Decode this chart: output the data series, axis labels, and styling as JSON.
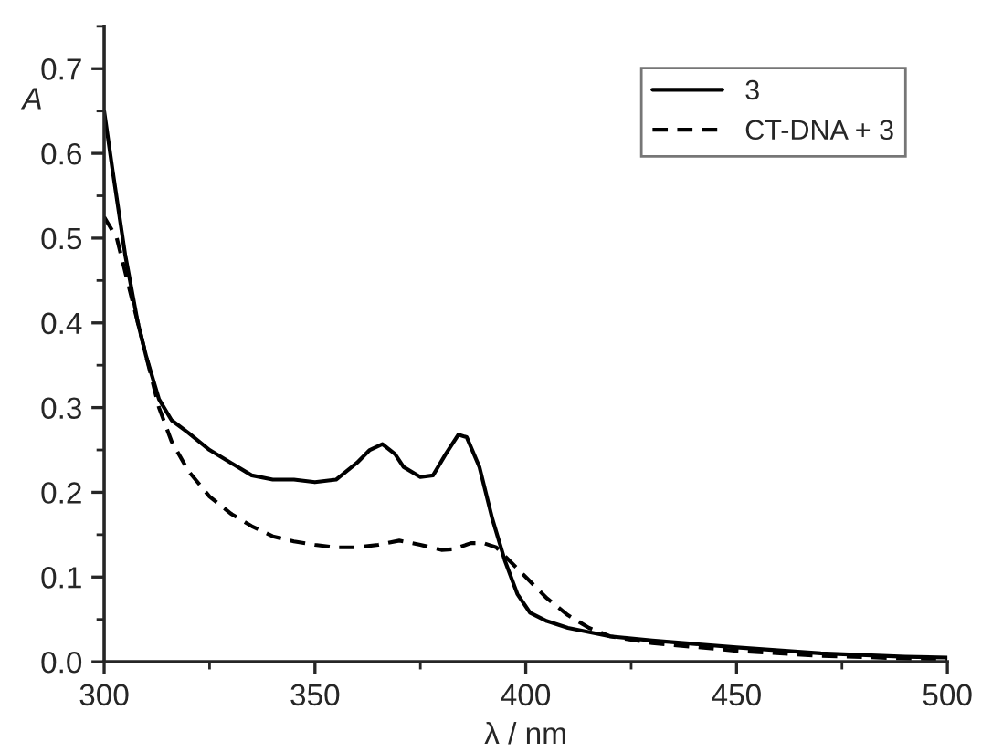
{
  "chart_data": {
    "type": "line",
    "xlabel": "λ / nm",
    "ylabel": "A",
    "xlim": [
      300,
      500
    ],
    "xticks": [
      300,
      350,
      400,
      450,
      500
    ],
    "ylim": [
      0,
      0.75
    ],
    "yticks": [
      {
        "value": 0,
        "label": "0.0"
      },
      0.1,
      0.2,
      0.3,
      0.4,
      0.5,
      0.6,
      0.7
    ],
    "grid": false,
    "legend": "top right",
    "marker": "none",
    "series": [
      {
        "name": "3",
        "color": "#000000",
        "line_style": "solid",
        "x": [
          300,
          302,
          305,
          308,
          310,
          313,
          316,
          320,
          325,
          330,
          335,
          340,
          345,
          350,
          355,
          360,
          363,
          366,
          369,
          371,
          375,
          378,
          381,
          384,
          386,
          389,
          392,
          395,
          398,
          401,
          405,
          410,
          420,
          430,
          450,
          470,
          490,
          500
        ],
        "values": [
          0.65,
          0.58,
          0.48,
          0.4,
          0.36,
          0.31,
          0.285,
          0.27,
          0.25,
          0.235,
          0.22,
          0.215,
          0.215,
          0.212,
          0.215,
          0.235,
          0.25,
          0.257,
          0.245,
          0.23,
          0.218,
          0.22,
          0.245,
          0.268,
          0.265,
          0.23,
          0.17,
          0.12,
          0.08,
          0.058,
          0.048,
          0.04,
          0.03,
          0.025,
          0.017,
          0.01,
          0.006,
          0.005
        ]
      },
      {
        "name": "CT-DNA + 3",
        "color": "#000000",
        "line_style": "dashed",
        "x": [
          300,
          303,
          306,
          310,
          313,
          316,
          320,
          325,
          330,
          335,
          340,
          345,
          350,
          355,
          360,
          365,
          370,
          375,
          380,
          383,
          387,
          390,
          393,
          396,
          400,
          405,
          410,
          415,
          420,
          430,
          450,
          470,
          490,
          500
        ],
        "values": [
          0.525,
          0.5,
          0.44,
          0.36,
          0.3,
          0.26,
          0.225,
          0.195,
          0.175,
          0.16,
          0.148,
          0.142,
          0.138,
          0.135,
          0.135,
          0.138,
          0.143,
          0.138,
          0.132,
          0.133,
          0.14,
          0.14,
          0.135,
          0.12,
          0.1,
          0.075,
          0.055,
          0.04,
          0.03,
          0.022,
          0.013,
          0.007,
          0.004,
          0.003
        ]
      }
    ]
  }
}
